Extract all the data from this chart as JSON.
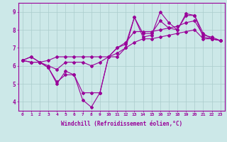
{
  "xlabel": "Windchill (Refroidissement éolien,°C)",
  "xlim": [
    -0.5,
    23.5
  ],
  "ylim": [
    3.5,
    9.5
  ],
  "yticks": [
    4,
    5,
    6,
    7,
    8,
    9
  ],
  "xticks": [
    0,
    1,
    2,
    3,
    4,
    5,
    6,
    7,
    8,
    9,
    10,
    11,
    12,
    13,
    14,
    15,
    16,
    17,
    18,
    19,
    20,
    21,
    22,
    23
  ],
  "bg_color": "#cce8e8",
  "line_color": "#990099",
  "grid_color": "#aacccc",
  "series": [
    [
      6.3,
      6.5,
      6.2,
      5.9,
      5.0,
      5.7,
      5.5,
      4.1,
      3.7,
      4.5,
      6.5,
      6.5,
      7.0,
      8.7,
      7.6,
      7.7,
      9.0,
      8.4,
      8.0,
      8.9,
      8.8,
      7.6,
      7.5,
      7.4
    ],
    [
      6.3,
      6.5,
      6.2,
      5.9,
      5.1,
      5.5,
      5.5,
      4.5,
      4.5,
      4.5,
      6.5,
      7.0,
      7.2,
      8.7,
      7.8,
      7.8,
      8.5,
      8.1,
      8.0,
      8.8,
      8.8,
      7.8,
      7.5,
      7.4
    ],
    [
      6.3,
      6.2,
      6.2,
      6.0,
      5.8,
      6.2,
      6.2,
      6.2,
      6.0,
      6.2,
      6.5,
      7.0,
      7.3,
      7.9,
      7.9,
      7.9,
      8.0,
      8.1,
      8.2,
      8.4,
      8.5,
      7.7,
      7.6,
      7.4
    ],
    [
      6.3,
      6.2,
      6.2,
      6.3,
      6.5,
      6.5,
      6.5,
      6.5,
      6.5,
      6.5,
      6.5,
      6.7,
      7.0,
      7.3,
      7.5,
      7.5,
      7.6,
      7.7,
      7.8,
      7.9,
      8.0,
      7.5,
      7.5,
      7.4
    ]
  ]
}
